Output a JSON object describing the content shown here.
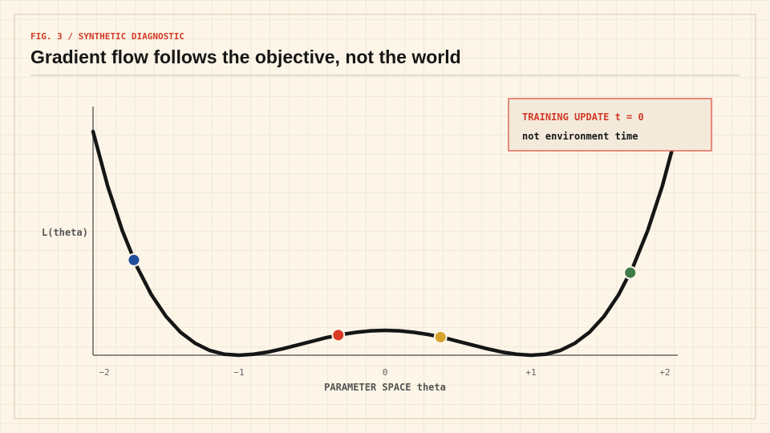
{
  "chart_data": {
    "type": "line",
    "eyebrow": "FIG. 3 / SYNTHETIC DIAGNOSTIC",
    "title": "Gradient flow follows the objective, not the world",
    "xlabel": "PARAMETER SPACE theta",
    "ylabel": "L(theta)",
    "xlim": [
      -2,
      2
    ],
    "ylim": [
      0,
      10
    ],
    "xticks": [
      {
        "value": -2,
        "label": "−2"
      },
      {
        "value": -1,
        "label": "−1"
      },
      0,
      {
        "value": 1,
        "label": "+1"
      },
      {
        "value": 2,
        "label": "+2"
      }
    ],
    "x": [
      -2,
      -1.9,
      -1.8,
      -1.7,
      -1.6,
      -1.5,
      -1.4,
      -1.3,
      -1.2,
      -1.1,
      -1,
      -0.9,
      -0.8,
      -0.7,
      -0.6,
      -0.5,
      -0.4,
      -0.3,
      -0.2,
      -0.1,
      0,
      0.1,
      0.2,
      0.3,
      0.4,
      0.5,
      0.6,
      0.7,
      0.8,
      0.9,
      1,
      1.1,
      1.2,
      1.3,
      1.4,
      1.5,
      1.6,
      1.7,
      1.8,
      1.9,
      2
    ],
    "series": [
      {
        "color": "#161616",
        "values": [
          9,
          6.81,
          5.02,
          3.57,
          2.43,
          1.56,
          0.92,
          0.48,
          0.19,
          0.04,
          0,
          0.04,
          0.13,
          0.26,
          0.41,
          0.56,
          0.71,
          0.83,
          0.92,
          0.98,
          1,
          0.98,
          0.92,
          0.83,
          0.71,
          0.56,
          0.41,
          0.26,
          0.13,
          0.04,
          0,
          0.04,
          0.19,
          0.48,
          0.92,
          1.56,
          2.43,
          3.57,
          5.02,
          6.81,
          9
        ]
      }
    ],
    "points": {
      "x": [
        -1.72,
        -0.32,
        0.38,
        1.68
      ],
      "y": [
        3.83,
        0.81,
        0.73,
        3.32
      ],
      "colors": [
        "#1f4f9c",
        "#d83a24",
        "#d6a42c",
        "#3d7a48"
      ]
    },
    "annotation": [
      "TRAINING UPDATE t = 0",
      "not environment time"
    ]
  }
}
